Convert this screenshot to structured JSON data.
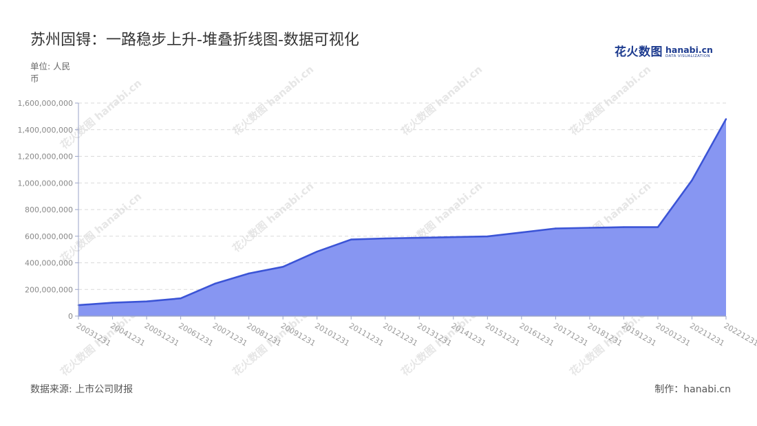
{
  "title": "苏州固锝：一路稳步上升-堆叠折线图-数据可视化",
  "unit_label": "单位: 人民币",
  "logo": {
    "cn": "花火数图",
    "en": "hanabi.cn",
    "sub": "DATA VISUALIZATION"
  },
  "watermark_text": "花火数图 hanabi.cn",
  "source_label": "数据来源: 上市公司财报",
  "credit_label": "制作：hanabi.cn",
  "colors": {
    "line": "#3b54d6",
    "fill": "#8796f2",
    "grid": "#d9d9d9",
    "axis": "#9aa3c8"
  },
  "chart_data": {
    "type": "area",
    "x": [
      "20031231",
      "20041231",
      "20051231",
      "20061231",
      "20071231",
      "20081231",
      "20091231",
      "20101231",
      "20111231",
      "20121231",
      "20131231",
      "20141231",
      "20151231",
      "20161231",
      "20171231",
      "20181231",
      "20191231",
      "20201231",
      "20211231",
      "20221231"
    ],
    "series": [
      {
        "values": [
          82000000,
          100000000,
          110000000,
          133000000,
          243000000,
          320000000,
          370000000,
          484000000,
          575000000,
          583000000,
          588000000,
          593000000,
          598000000,
          628000000,
          658000000,
          663000000,
          668000000,
          668000000,
          1020000000,
          1480000000
        ]
      }
    ],
    "yticks": [
      "0",
      "200,000,000",
      "400,000,000",
      "600,000,000",
      "800,000,000",
      "1,000,000,000",
      "1,200,000,000",
      "1,400,000,000",
      "1,600,000,000"
    ],
    "ylim": [
      0,
      1600000000
    ],
    "grid": true,
    "xlabel": "",
    "ylabel": ""
  }
}
